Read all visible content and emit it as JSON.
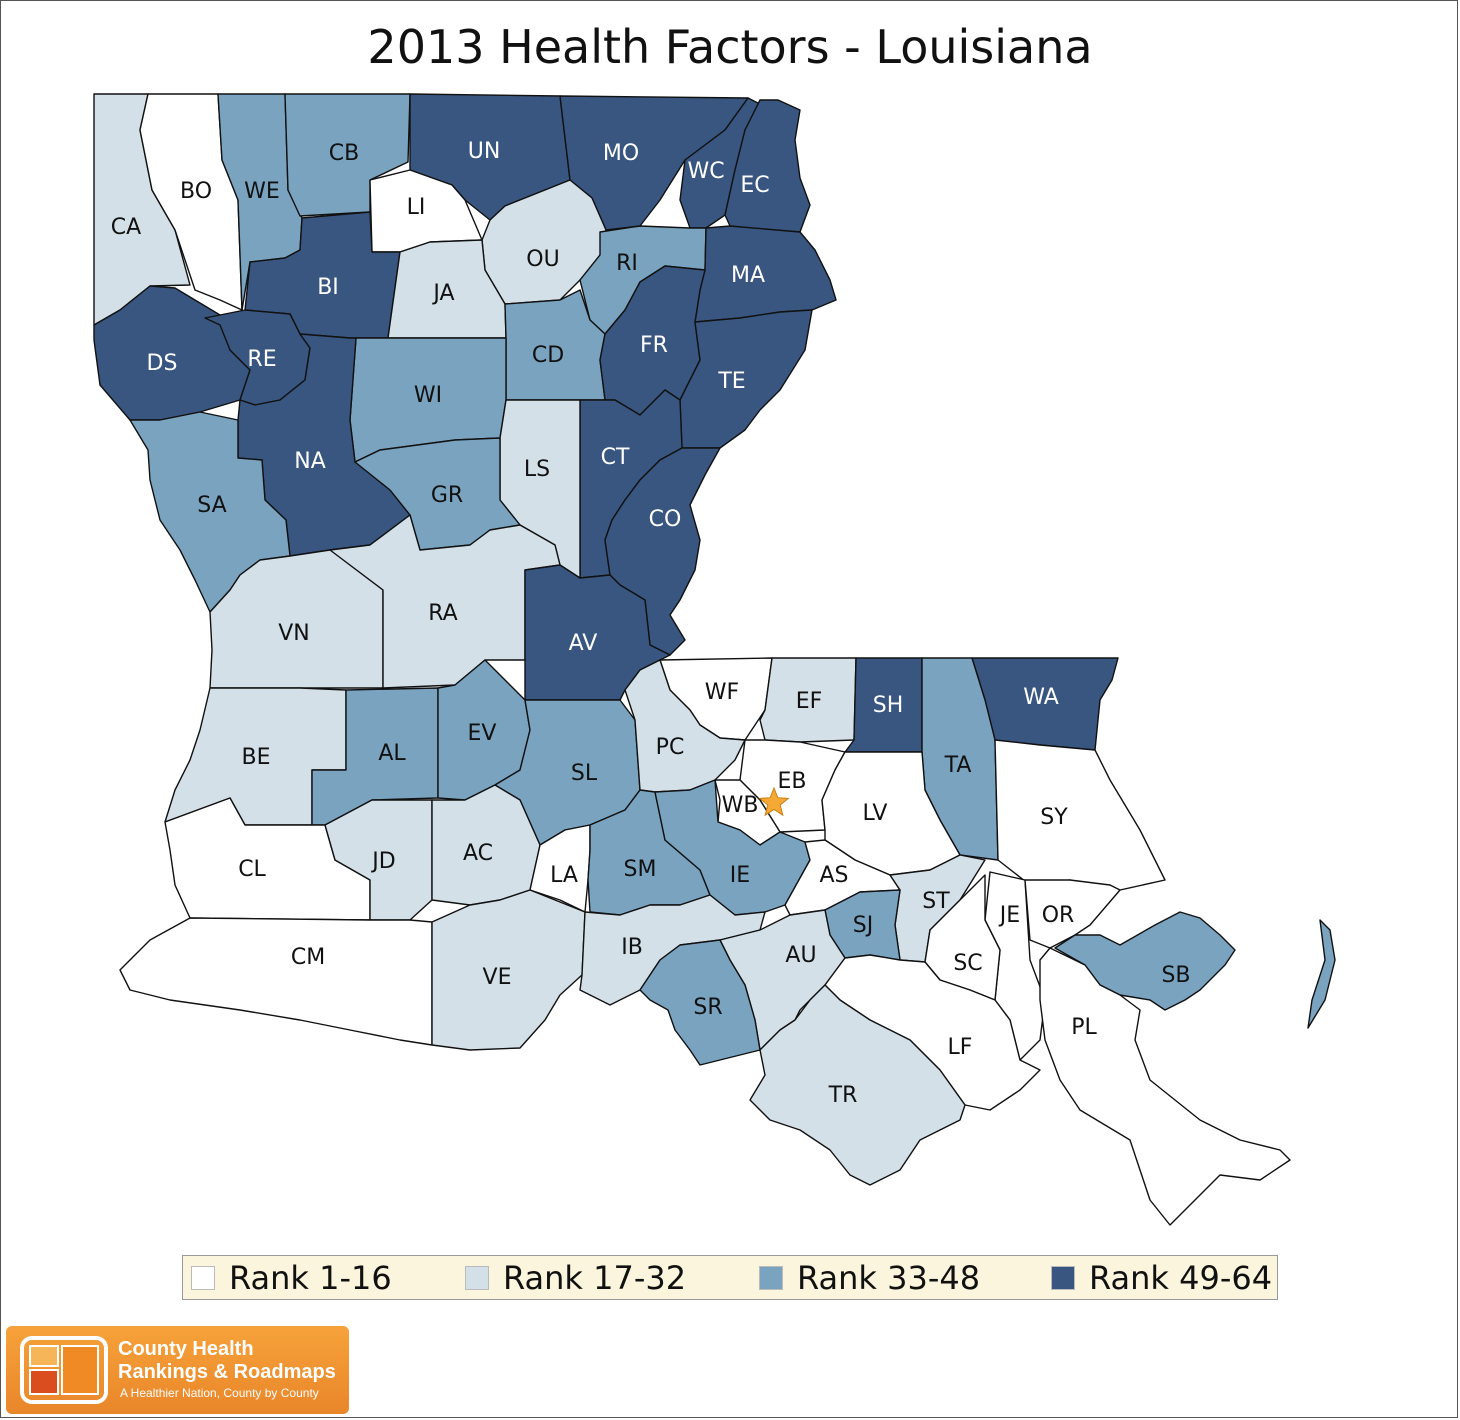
{
  "title": "2013 Health Factors - Louisiana",
  "colors": {
    "rank_1_16": "#ffffff",
    "rank_17_32": "#d3e0e8",
    "rank_33_48": "#7aa3c0",
    "rank_49_64": "#385680"
  },
  "legend": [
    {
      "label": "Rank 1-16",
      "rank_group": "rank_1_16"
    },
    {
      "label": "Rank 17-32",
      "rank_group": "rank_17_32"
    },
    {
      "label": "Rank 33-48",
      "rank_group": "rank_33_48"
    },
    {
      "label": "Rank 49-64",
      "rank_group": "rank_49_64"
    }
  ],
  "parishes": [
    {
      "abbr": "CA",
      "rank_group": "rank_17_32"
    },
    {
      "abbr": "BO",
      "rank_group": "rank_1_16"
    },
    {
      "abbr": "WE",
      "rank_group": "rank_33_48"
    },
    {
      "abbr": "CB",
      "rank_group": "rank_33_48"
    },
    {
      "abbr": "UN",
      "rank_group": "rank_49_64"
    },
    {
      "abbr": "MO",
      "rank_group": "rank_49_64"
    },
    {
      "abbr": "WC",
      "rank_group": "rank_49_64"
    },
    {
      "abbr": "EC",
      "rank_group": "rank_49_64"
    },
    {
      "abbr": "LI",
      "rank_group": "rank_1_16"
    },
    {
      "abbr": "OU",
      "rank_group": "rank_17_32"
    },
    {
      "abbr": "RI",
      "rank_group": "rank_33_48"
    },
    {
      "abbr": "MA",
      "rank_group": "rank_49_64"
    },
    {
      "abbr": "BI",
      "rank_group": "rank_49_64"
    },
    {
      "abbr": "JA",
      "rank_group": "rank_17_32"
    },
    {
      "abbr": "DS",
      "rank_group": "rank_49_64"
    },
    {
      "abbr": "RE",
      "rank_group": "rank_49_64"
    },
    {
      "abbr": "CD",
      "rank_group": "rank_33_48"
    },
    {
      "abbr": "FR",
      "rank_group": "rank_49_64"
    },
    {
      "abbr": "TE",
      "rank_group": "rank_49_64"
    },
    {
      "abbr": "WI",
      "rank_group": "rank_33_48"
    },
    {
      "abbr": "NA",
      "rank_group": "rank_49_64"
    },
    {
      "abbr": "CT",
      "rank_group": "rank_49_64"
    },
    {
      "abbr": "LS",
      "rank_group": "rank_17_32"
    },
    {
      "abbr": "GR",
      "rank_group": "rank_33_48"
    },
    {
      "abbr": "CO",
      "rank_group": "rank_49_64"
    },
    {
      "abbr": "SA",
      "rank_group": "rank_33_48"
    },
    {
      "abbr": "VN",
      "rank_group": "rank_17_32"
    },
    {
      "abbr": "RA",
      "rank_group": "rank_17_32"
    },
    {
      "abbr": "AV",
      "rank_group": "rank_49_64"
    },
    {
      "abbr": "WF",
      "rank_group": "rank_1_16"
    },
    {
      "abbr": "EF",
      "rank_group": "rank_17_32"
    },
    {
      "abbr": "SH",
      "rank_group": "rank_49_64"
    },
    {
      "abbr": "WA",
      "rank_group": "rank_49_64"
    },
    {
      "abbr": "BE",
      "rank_group": "rank_17_32"
    },
    {
      "abbr": "AL",
      "rank_group": "rank_33_48"
    },
    {
      "abbr": "EV",
      "rank_group": "rank_33_48"
    },
    {
      "abbr": "SL",
      "rank_group": "rank_33_48"
    },
    {
      "abbr": "PC",
      "rank_group": "rank_17_32"
    },
    {
      "abbr": "EB",
      "rank_group": "rank_1_16"
    },
    {
      "abbr": "TA",
      "rank_group": "rank_33_48"
    },
    {
      "abbr": "WB",
      "rank_group": "rank_1_16"
    },
    {
      "abbr": "LV",
      "rank_group": "rank_1_16"
    },
    {
      "abbr": "SY",
      "rank_group": "rank_1_16"
    },
    {
      "abbr": "CL",
      "rank_group": "rank_1_16"
    },
    {
      "abbr": "JD",
      "rank_group": "rank_17_32"
    },
    {
      "abbr": "AC",
      "rank_group": "rank_17_32"
    },
    {
      "abbr": "LA",
      "rank_group": "rank_1_16"
    },
    {
      "abbr": "SM",
      "rank_group": "rank_33_48"
    },
    {
      "abbr": "IE",
      "rank_group": "rank_33_48"
    },
    {
      "abbr": "AS",
      "rank_group": "rank_1_16"
    },
    {
      "abbr": "ST",
      "rank_group": "rank_17_32"
    },
    {
      "abbr": "SJ",
      "rank_group": "rank_33_48"
    },
    {
      "abbr": "JE",
      "rank_group": "rank_1_16"
    },
    {
      "abbr": "OR",
      "rank_group": "rank_1_16"
    },
    {
      "abbr": "SC",
      "rank_group": "rank_1_16"
    },
    {
      "abbr": "SB",
      "rank_group": "rank_33_48"
    },
    {
      "abbr": "CM",
      "rank_group": "rank_1_16"
    },
    {
      "abbr": "VE",
      "rank_group": "rank_17_32"
    },
    {
      "abbr": "IB",
      "rank_group": "rank_17_32"
    },
    {
      "abbr": "AU",
      "rank_group": "rank_17_32"
    },
    {
      "abbr": "SR",
      "rank_group": "rank_33_48"
    },
    {
      "abbr": "LF",
      "rank_group": "rank_1_16"
    },
    {
      "abbr": "PL",
      "rank_group": "rank_1_16"
    },
    {
      "abbr": "TR",
      "rank_group": "rank_17_32"
    }
  ],
  "capital_marker": {
    "icon": "star-icon",
    "color": "#f5a833"
  },
  "logo": {
    "line1": "County Health",
    "line2": "Rankings & Roadmaps",
    "tagline": "A Healthier Nation, County by County"
  }
}
